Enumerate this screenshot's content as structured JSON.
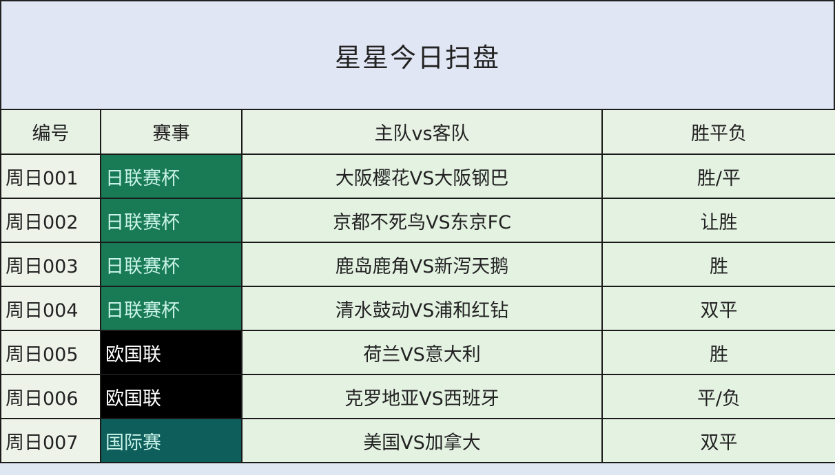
{
  "title": "星星今日扫盘",
  "headers": [
    "编号",
    "赛事",
    "主队vs客队",
    "胜平负"
  ],
  "colors": {
    "japan_cup": "#197a56",
    "europe": "#000000",
    "international": "#0e5e5c",
    "league_text": "#c9f3e8"
  },
  "rows": [
    {
      "id": "周日001",
      "league": "日联赛杯",
      "match": "大阪樱花VS大阪钢巴",
      "pick": "胜/平",
      "bg": "#197a56",
      "fg": "#c9f3e8"
    },
    {
      "id": "周日002",
      "league": "日联赛杯",
      "match": "京都不死鸟VS东京FC",
      "pick": "让胜",
      "bg": "#197a56",
      "fg": "#c9f3e8"
    },
    {
      "id": "周日003",
      "league": "日联赛杯",
      "match": "鹿岛鹿角VS新泻天鹅",
      "pick": "胜",
      "bg": "#197a56",
      "fg": "#c9f3e8"
    },
    {
      "id": "周日004",
      "league": "日联赛杯",
      "match": "清水鼓动VS浦和红钻",
      "pick": "双平",
      "bg": "#197a56",
      "fg": "#c9f3e8"
    },
    {
      "id": "周日005",
      "league": "欧国联",
      "match": "荷兰VS意大利",
      "pick": "胜",
      "bg": "#000000",
      "fg": "#ffffff"
    },
    {
      "id": "周日006",
      "league": "欧国联",
      "match": "克罗地亚VS西班牙",
      "pick": "平/负",
      "bg": "#000000",
      "fg": "#ffffff"
    },
    {
      "id": "周日007",
      "league": "国际赛",
      "match": "美国VS加拿大",
      "pick": "双平",
      "bg": "#0e5e5c",
      "fg": "#c9f3e8"
    }
  ]
}
